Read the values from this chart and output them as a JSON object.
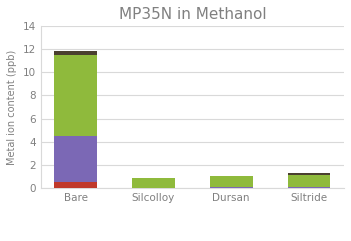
{
  "title": "MP35N in Methanol",
  "ylabel": "Metal ion content (ppb)",
  "categories": [
    "Bare",
    "Silcolloy",
    "Dursan",
    "Siltride"
  ],
  "series": {
    "Cr": [
      0.5,
      0.0,
      0.0,
      0.0
    ],
    "Co": [
      4.0,
      0.0,
      0.1,
      0.1
    ],
    "Ni": [
      7.0,
      0.9,
      0.9,
      1.0
    ],
    "Mo": [
      0.3,
      0.0,
      0.0,
      0.2
    ]
  },
  "colors": {
    "Cr": "#c0392b",
    "Co": "#7b68b5",
    "Ni": "#8fba3c",
    "Mo": "#4a3f2f"
  },
  "ylim": [
    0,
    14
  ],
  "yticks": [
    0,
    2,
    4,
    6,
    8,
    10,
    12,
    14
  ],
  "background_color": "#ffffff",
  "grid_color": "#d9d9d9",
  "title_fontsize": 11,
  "title_color": "#808080",
  "axis_fontsize": 7,
  "tick_fontsize": 7.5,
  "legend_fontsize": 7.5
}
